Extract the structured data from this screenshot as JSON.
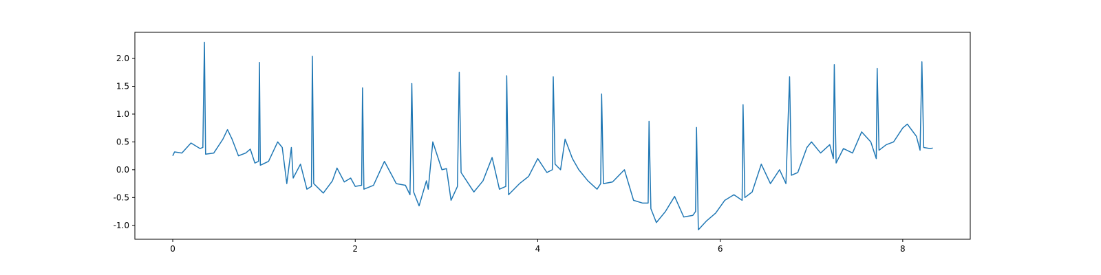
{
  "chart_data": {
    "type": "line",
    "x": [
      0,
      0.02,
      0.1,
      0.2,
      0.3,
      0.33,
      0.347,
      0.36,
      0.45,
      0.55,
      0.6,
      0.65,
      0.72,
      0.8,
      0.85,
      0.9,
      0.94,
      0.95,
      0.96,
      1.05,
      1.15,
      1.2,
      1.25,
      1.3,
      1.32,
      1.4,
      1.47,
      1.52,
      1.53,
      1.545,
      1.65,
      1.75,
      1.8,
      1.88,
      1.95,
      2.0,
      2.07,
      2.08,
      2.095,
      2.2,
      2.32,
      2.45,
      2.55,
      2.6,
      2.62,
      2.64,
      2.7,
      2.78,
      2.8,
      2.85,
      2.95,
      3.0,
      3.05,
      3.12,
      3.14,
      3.16,
      3.3,
      3.4,
      3.5,
      3.58,
      3.65,
      3.66,
      3.68,
      3.8,
      3.9,
      4.0,
      4.1,
      4.16,
      4.17,
      4.19,
      4.25,
      4.3,
      4.38,
      4.45,
      4.55,
      4.65,
      4.69,
      4.7,
      4.72,
      4.82,
      4.95,
      5.05,
      5.15,
      5.21,
      5.22,
      5.24,
      5.3,
      5.4,
      5.5,
      5.6,
      5.7,
      5.73,
      5.74,
      5.76,
      5.85,
      5.95,
      6.05,
      6.15,
      6.24,
      6.25,
      6.27,
      6.35,
      6.45,
      6.55,
      6.65,
      6.72,
      6.76,
      6.78,
      6.85,
      6.95,
      7.0,
      7.1,
      7.2,
      7.24,
      7.25,
      7.27,
      7.35,
      7.45,
      7.55,
      7.65,
      7.71,
      7.72,
      7.74,
      7.82,
      7.9,
      8.0,
      8.05,
      8.15,
      8.19,
      8.21,
      8.23,
      8.3,
      8.33
    ],
    "series": [
      {
        "color": "#1f77b4",
        "values": [
          0.25,
          0.32,
          0.3,
          0.48,
          0.38,
          0.4,
          2.29,
          0.28,
          0.3,
          0.55,
          0.72,
          0.55,
          0.25,
          0.3,
          0.37,
          0.12,
          0.15,
          1.93,
          0.08,
          0.15,
          0.5,
          0.4,
          -0.25,
          0.4,
          -0.15,
          0.1,
          -0.35,
          -0.3,
          2.04,
          -0.25,
          -0.42,
          -0.2,
          0.03,
          -0.22,
          -0.15,
          -0.3,
          -0.28,
          1.47,
          -0.35,
          -0.28,
          0.15,
          -0.25,
          -0.28,
          -0.45,
          1.55,
          -0.4,
          -0.65,
          -0.2,
          -0.35,
          0.5,
          0.0,
          0.02,
          -0.55,
          -0.3,
          1.75,
          -0.05,
          -0.4,
          -0.2,
          0.22,
          -0.35,
          -0.3,
          1.69,
          -0.45,
          -0.25,
          -0.12,
          0.2,
          -0.05,
          0.0,
          1.67,
          0.1,
          0.0,
          0.55,
          0.2,
          0.0,
          -0.2,
          -0.35,
          -0.25,
          1.36,
          -0.25,
          -0.22,
          0.0,
          -0.55,
          -0.6,
          -0.6,
          0.87,
          -0.7,
          -0.95,
          -0.75,
          -0.48,
          -0.85,
          -0.82,
          -0.75,
          0.76,
          -1.08,
          -0.92,
          -0.78,
          -0.55,
          -0.45,
          -0.55,
          1.17,
          -0.5,
          -0.4,
          0.1,
          -0.25,
          0.0,
          -0.25,
          1.67,
          -0.1,
          -0.05,
          0.4,
          0.5,
          0.3,
          0.45,
          0.2,
          1.89,
          0.12,
          0.38,
          0.3,
          0.68,
          0.5,
          0.2,
          1.82,
          0.35,
          0.45,
          0.5,
          0.75,
          0.82,
          0.6,
          0.35,
          1.94,
          0.4,
          0.38,
          0.39
        ]
      }
    ],
    "xlim": [
      -0.415,
      8.74
    ],
    "xticks": [
      0,
      2,
      4,
      6,
      8
    ],
    "ylim": [
      -1.25,
      2.47
    ],
    "yticks": [
      {
        "value": -1,
        "label": "-1.0"
      },
      {
        "value": -0.5,
        "label": "-0.5"
      },
      {
        "value": 0,
        "label": "0.0"
      },
      {
        "value": 0.5,
        "label": "0.5"
      },
      {
        "value": 1,
        "label": "1.0"
      },
      {
        "value": 1.5,
        "label": "1.5"
      },
      {
        "value": 2,
        "label": "2.0"
      }
    ]
  }
}
